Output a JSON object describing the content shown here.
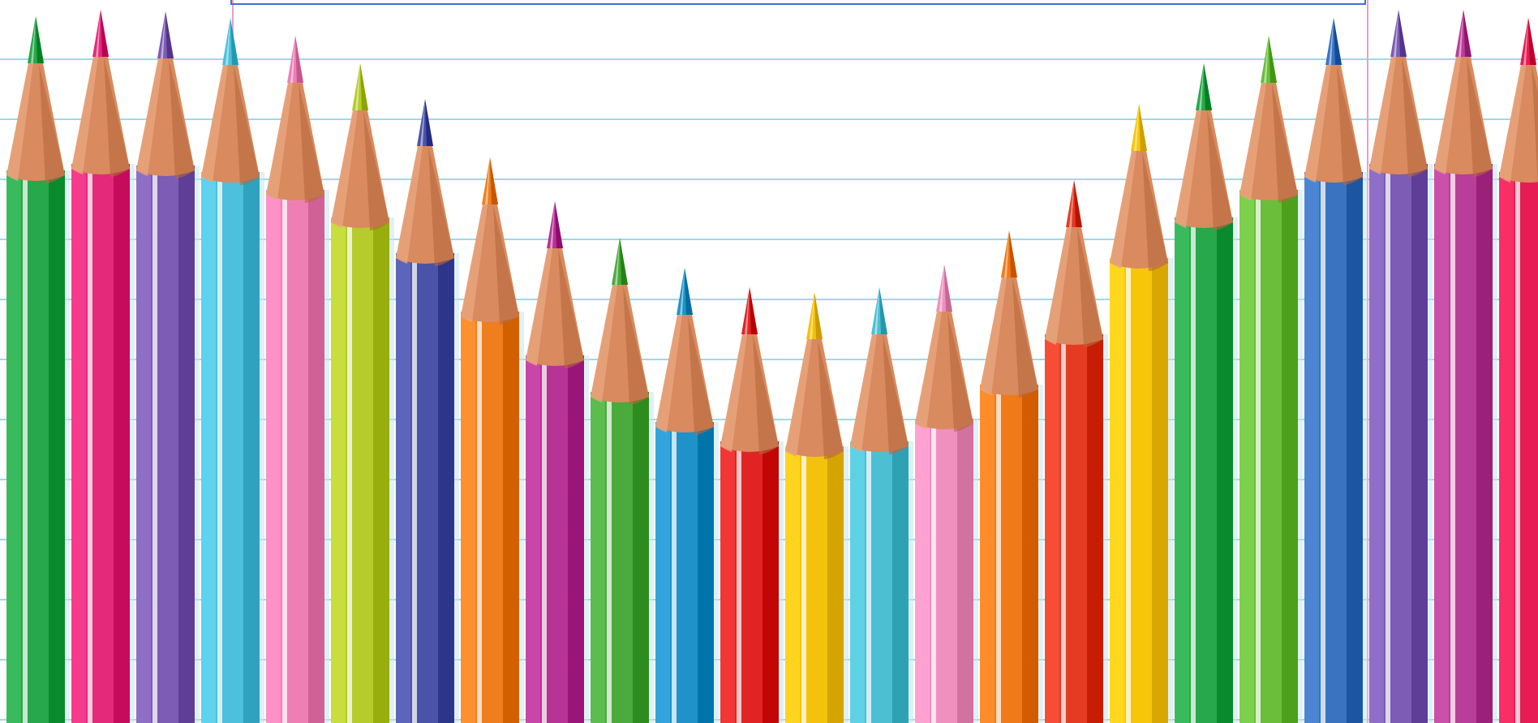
{
  "scene": {
    "description_colors": {
      "paper_background": "#ffffff",
      "ruled_line": "#9fd9e6",
      "margin_line": "#e7a0c9",
      "wood": "#d98a5e",
      "wood_shadow": "#b8683d",
      "textbox_border": "#3f6fd8"
    },
    "pencil_colors": [
      "#27a84a",
      "#e4287a",
      "#7c5cb4",
      "#4cc0dc",
      "#ee7fb5",
      "#b5cc2a",
      "#4a53a8",
      "#f07e1e",
      "#b73396",
      "#4aaa3c",
      "#1f93c9",
      "#e02424",
      "#f4c20c",
      "#4cc0d2",
      "#f090bf",
      "#f07a18",
      "#e43b22",
      "#f7c60b",
      "#27a84a",
      "#6abe3a",
      "#3a74c0",
      "#7c5cb4",
      "#b83e98",
      "#e71c55"
    ]
  }
}
